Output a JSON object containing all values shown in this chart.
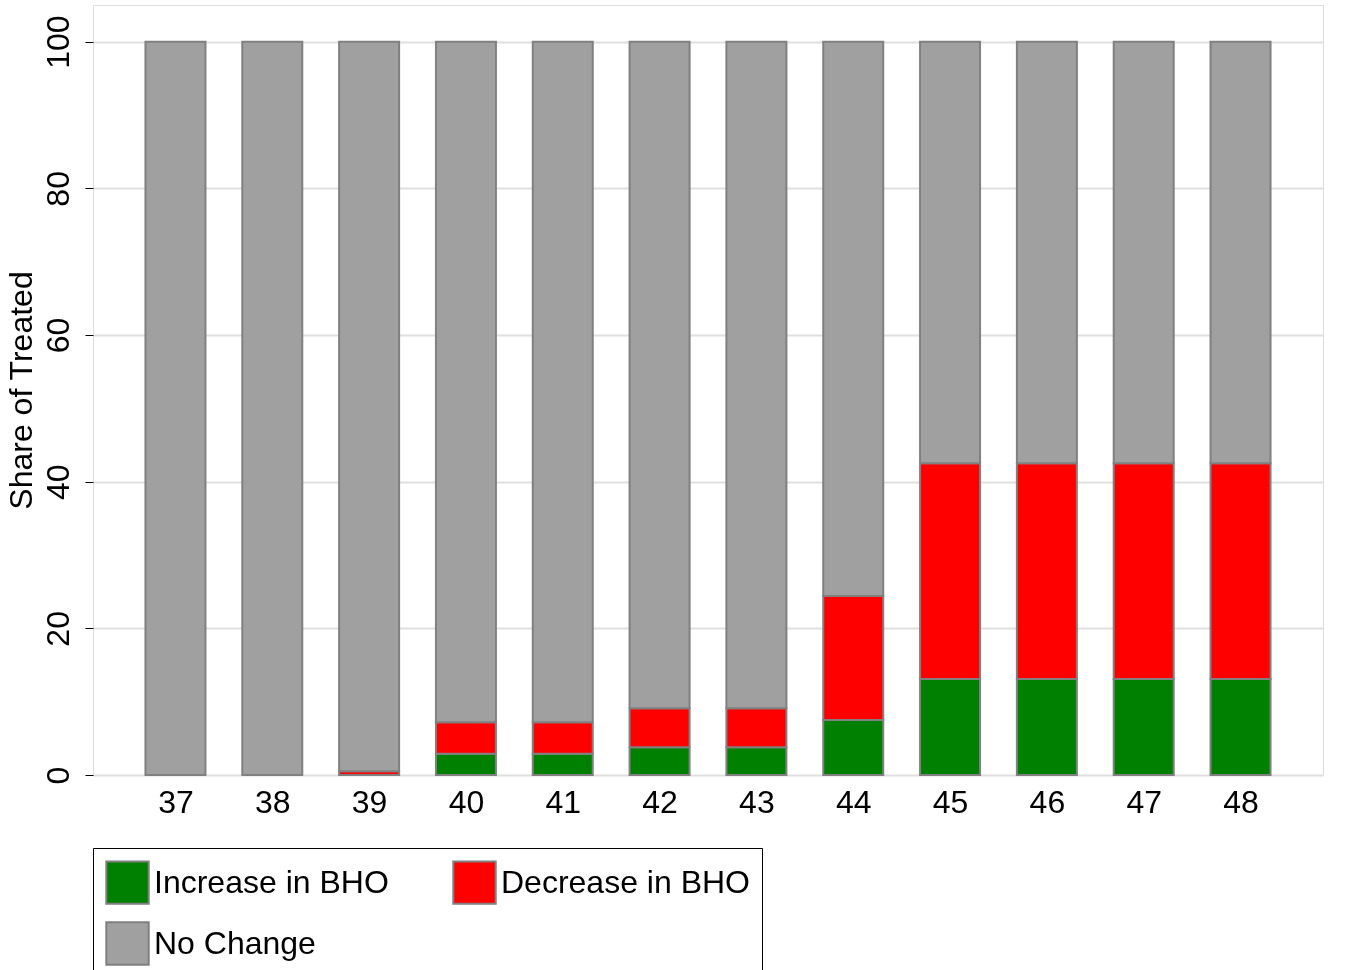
{
  "chart_data": {
    "type": "bar",
    "stacked": true,
    "ylabel": "Share of Treated",
    "categories": [
      "37",
      "38",
      "39",
      "40",
      "41",
      "42",
      "43",
      "44",
      "45",
      "46",
      "47",
      "48"
    ],
    "series": [
      {
        "name": "Increase in BHO",
        "color": "#008000",
        "values": [
          0,
          0,
          0,
          2.9,
          2.9,
          3.8,
          3.8,
          7.5,
          13.1,
          13.1,
          13.1,
          13.1
        ]
      },
      {
        "name": "Decrease in BHO",
        "color": "#ff0000",
        "values": [
          0,
          0,
          0.5,
          4.3,
          4.3,
          5.3,
          5.3,
          16.9,
          29.4,
          29.4,
          29.4,
          29.4
        ]
      },
      {
        "name": "No Change",
        "color": "#a0a0a0",
        "values": [
          100,
          100,
          99.5,
          92.8,
          92.8,
          90.9,
          90.9,
          75.6,
          57.5,
          57.5,
          57.5,
          57.5
        ]
      }
    ],
    "ylim": [
      0,
      105
    ],
    "yticks": [
      0,
      20,
      40,
      60,
      80,
      100
    ],
    "grid": "y",
    "legend": "bottom"
  }
}
